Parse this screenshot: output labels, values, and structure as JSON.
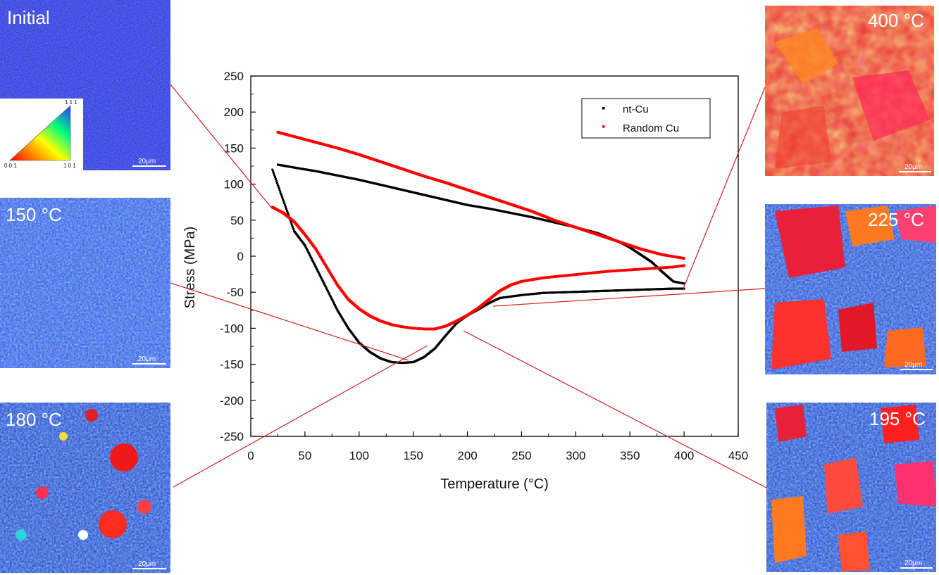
{
  "chart_data": {
    "type": "scatter",
    "xlabel": "Temperature (°C)",
    "ylabel": "Stress (MPa)",
    "xlim": [
      0,
      450
    ],
    "ylim": [
      -250,
      250
    ],
    "x_ticks": [
      0,
      50,
      100,
      150,
      200,
      250,
      300,
      350,
      400,
      450
    ],
    "y_ticks": [
      250,
      200,
      150,
      100,
      50,
      0,
      -50,
      -100,
      -150,
      -200,
      -250
    ],
    "legend_position": "top-right",
    "grid": false,
    "series": [
      {
        "name": "nt-Cu",
        "color": "#000000",
        "heating": [
          [
            20,
            120
          ],
          [
            40,
            35
          ],
          [
            50,
            15
          ],
          [
            60,
            -15
          ],
          [
            70,
            -45
          ],
          [
            80,
            -75
          ],
          [
            90,
            -100
          ],
          [
            100,
            -120
          ],
          [
            110,
            -133
          ],
          [
            120,
            -142
          ],
          [
            130,
            -147
          ],
          [
            140,
            -148
          ],
          [
            150,
            -147
          ],
          [
            160,
            -140
          ],
          [
            170,
            -128
          ],
          [
            180,
            -110
          ],
          [
            190,
            -93
          ],
          [
            200,
            -82
          ],
          [
            210,
            -74
          ],
          [
            220,
            -65
          ],
          [
            230,
            -58
          ],
          [
            250,
            -54
          ],
          [
            270,
            -51
          ],
          [
            290,
            -50
          ],
          [
            310,
            -49
          ],
          [
            330,
            -48
          ],
          [
            350,
            -47
          ],
          [
            370,
            -46
          ],
          [
            390,
            -45
          ],
          [
            400,
            -45
          ]
        ],
        "cooling": [
          [
            400,
            -38
          ],
          [
            390,
            -35
          ],
          [
            380,
            -22
          ],
          [
            370,
            -8
          ],
          [
            360,
            2
          ],
          [
            350,
            12
          ],
          [
            340,
            20
          ],
          [
            320,
            32
          ],
          [
            300,
            40
          ],
          [
            280,
            47
          ],
          [
            260,
            54
          ],
          [
            240,
            60
          ],
          [
            220,
            66
          ],
          [
            200,
            71
          ],
          [
            180,
            78
          ],
          [
            160,
            85
          ],
          [
            140,
            92
          ],
          [
            120,
            99
          ],
          [
            100,
            106
          ],
          [
            80,
            112
          ],
          [
            60,
            118
          ],
          [
            40,
            123
          ],
          [
            25,
            127
          ]
        ]
      },
      {
        "name": "Random Cu",
        "color": "#ff0000",
        "heating": [
          [
            20,
            68
          ],
          [
            30,
            60
          ],
          [
            40,
            48
          ],
          [
            50,
            30
          ],
          [
            60,
            10
          ],
          [
            70,
            -15
          ],
          [
            80,
            -40
          ],
          [
            90,
            -60
          ],
          [
            100,
            -73
          ],
          [
            110,
            -83
          ],
          [
            120,
            -90
          ],
          [
            130,
            -95
          ],
          [
            140,
            -98
          ],
          [
            150,
            -100
          ],
          [
            160,
            -101
          ],
          [
            170,
            -101
          ],
          [
            180,
            -97
          ],
          [
            190,
            -90
          ],
          [
            200,
            -82
          ],
          [
            210,
            -72
          ],
          [
            220,
            -60
          ],
          [
            230,
            -48
          ],
          [
            240,
            -40
          ],
          [
            250,
            -35
          ],
          [
            270,
            -30
          ],
          [
            290,
            -27
          ],
          [
            310,
            -24
          ],
          [
            330,
            -21
          ],
          [
            350,
            -19
          ],
          [
            370,
            -17
          ],
          [
            390,
            -15
          ],
          [
            400,
            -13
          ]
        ],
        "cooling": [
          [
            400,
            -3
          ],
          [
            380,
            2
          ],
          [
            360,
            10
          ],
          [
            340,
            20
          ],
          [
            320,
            30
          ],
          [
            300,
            40
          ],
          [
            280,
            50
          ],
          [
            260,
            62
          ],
          [
            240,
            72
          ],
          [
            220,
            82
          ],
          [
            200,
            92
          ],
          [
            180,
            102
          ],
          [
            160,
            111
          ],
          [
            140,
            121
          ],
          [
            120,
            131
          ],
          [
            100,
            141
          ],
          [
            80,
            150
          ],
          [
            60,
            158
          ],
          [
            40,
            166
          ],
          [
            25,
            172
          ]
        ]
      }
    ]
  },
  "panels": {
    "initial": {
      "label": "Initial",
      "scale": "20μm"
    },
    "p150": {
      "label": "150 °C",
      "scale": "20μm"
    },
    "p180": {
      "label": "180 °C",
      "scale": "20μm"
    },
    "p400": {
      "label": "400 °C",
      "scale": "20μm"
    },
    "p225": {
      "label": "225 °C",
      "scale": "20μm"
    },
    "p195": {
      "label": "195 °C",
      "scale": "20μm"
    }
  },
  "ipf_legend": {
    "top": "1 1 1",
    "left": "0 0 1",
    "right": "1 0 1"
  }
}
